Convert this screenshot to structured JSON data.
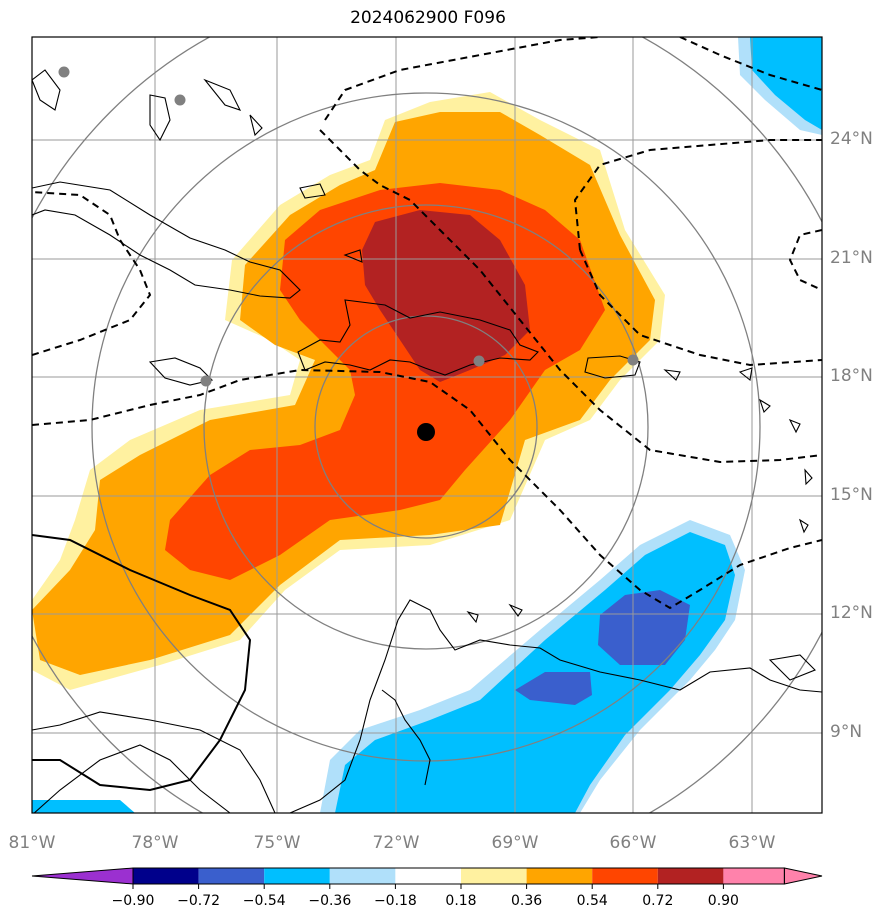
{
  "title": "2024062900 F096",
  "colors": {
    "pos_018": "#fff1a0",
    "pos_036": "#ffa500",
    "pos_054": "#ff4500",
    "pos_072": "#b22222",
    "neg_018": "#b0e0fa",
    "neg_036": "#00bfff",
    "neg_054": "#3a5fcd",
    "grid": "#9a9a9a",
    "coast": "#000000"
  },
  "map": {
    "center_marker": "storm-center",
    "stations": [
      "station-1",
      "station-2",
      "station-3",
      "station-4",
      "station-5"
    ]
  },
  "lat_labels": [
    "24°N",
    "21°N",
    "18°N",
    "15°N",
    "12°N",
    "9°N"
  ],
  "lon_labels": [
    "81°W",
    "78°W",
    "75°W",
    "72°W",
    "69°W",
    "66°W",
    "63°W"
  ],
  "colorbar": {
    "boundaries": [
      "−0.90",
      "−0.72",
      "−0.54",
      "−0.36",
      "−0.18",
      "0.18",
      "0.36",
      "0.54",
      "0.72",
      "0.90"
    ],
    "colors": [
      "#9b30d0",
      "#00008b",
      "#3a5fcd",
      "#00bfff",
      "#b0e0fa",
      "#ffffff",
      "#fff1a0",
      "#ffa500",
      "#ff4500",
      "#b22222",
      "#ff82ab"
    ]
  }
}
